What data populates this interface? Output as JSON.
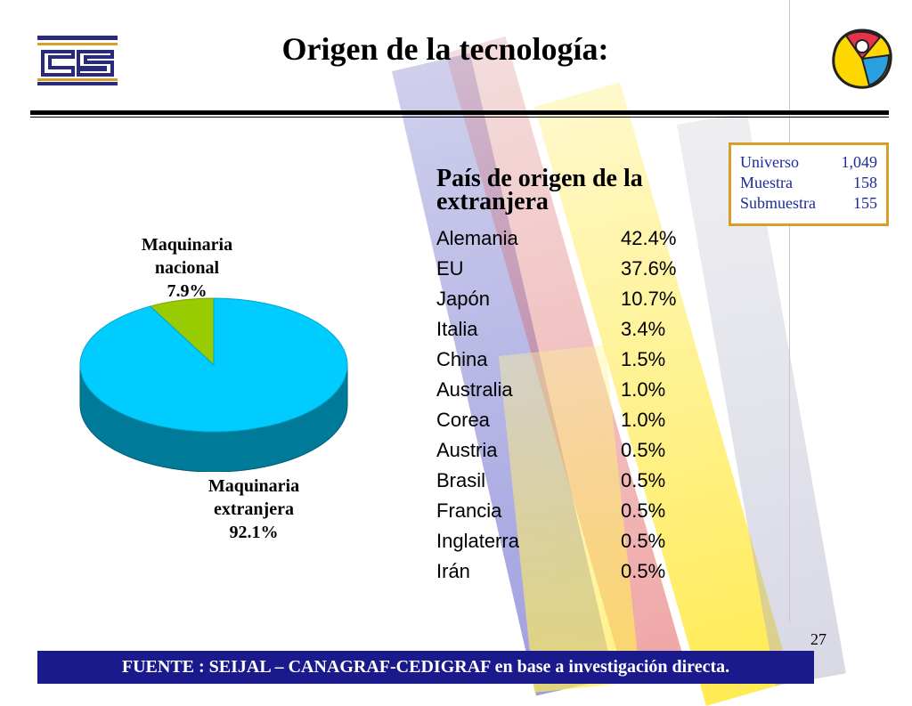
{
  "title": "Origen de la tecnología:",
  "page_number": "27",
  "sample_box": {
    "rows": [
      {
        "label": "Universo",
        "value": "1,049"
      },
      {
        "label": "Muestra",
        "value": "158"
      },
      {
        "label": "Submuestra",
        "value": "155"
      }
    ]
  },
  "country_list": {
    "title": "País de origen de la extranjera",
    "rows": [
      {
        "country": "Alemania",
        "pct": "42.4%"
      },
      {
        "country": "EU",
        "pct": "37.6%"
      },
      {
        "country": "Japón",
        "pct": "10.7%"
      },
      {
        "country": "Italia",
        "pct": "3.4%"
      },
      {
        "country": "China",
        "pct": "1.5%"
      },
      {
        "country": "Australia",
        "pct": "1.0%"
      },
      {
        "country": "Corea",
        "pct": "1.0%"
      },
      {
        "country": "Austria",
        "pct": "0.5%"
      },
      {
        "country": "Brasil",
        "pct": "0.5%"
      },
      {
        "country": "Francia",
        "pct": "0.5%"
      },
      {
        "country": "Inglaterra",
        "pct": "0.5%"
      },
      {
        "country": "Irán",
        "pct": "0.5%"
      }
    ]
  },
  "chart_data": {
    "type": "pie",
    "title": "",
    "slices": [
      {
        "name": "Maquinaria nacional",
        "value": 7.9,
        "label_line1": "Maquinaria",
        "label_line2": "nacional",
        "label_value": "7.9%",
        "color": "#99cc00"
      },
      {
        "name": "Maquinaria extranjera",
        "value": 92.1,
        "label_line1": "Maquinaria",
        "label_line2": "extranjera",
        "label_value": "92.1%",
        "color": "#00ccff"
      }
    ]
  },
  "footer": {
    "text": "FUENTE :  SEIJAL – CANAGRAF-CEDIGRAF en base a investigación directa."
  },
  "colors": {
    "footer_bg": "#1a1a8c",
    "box_border": "#d4a02a",
    "box_text": "#1e2a9a"
  }
}
